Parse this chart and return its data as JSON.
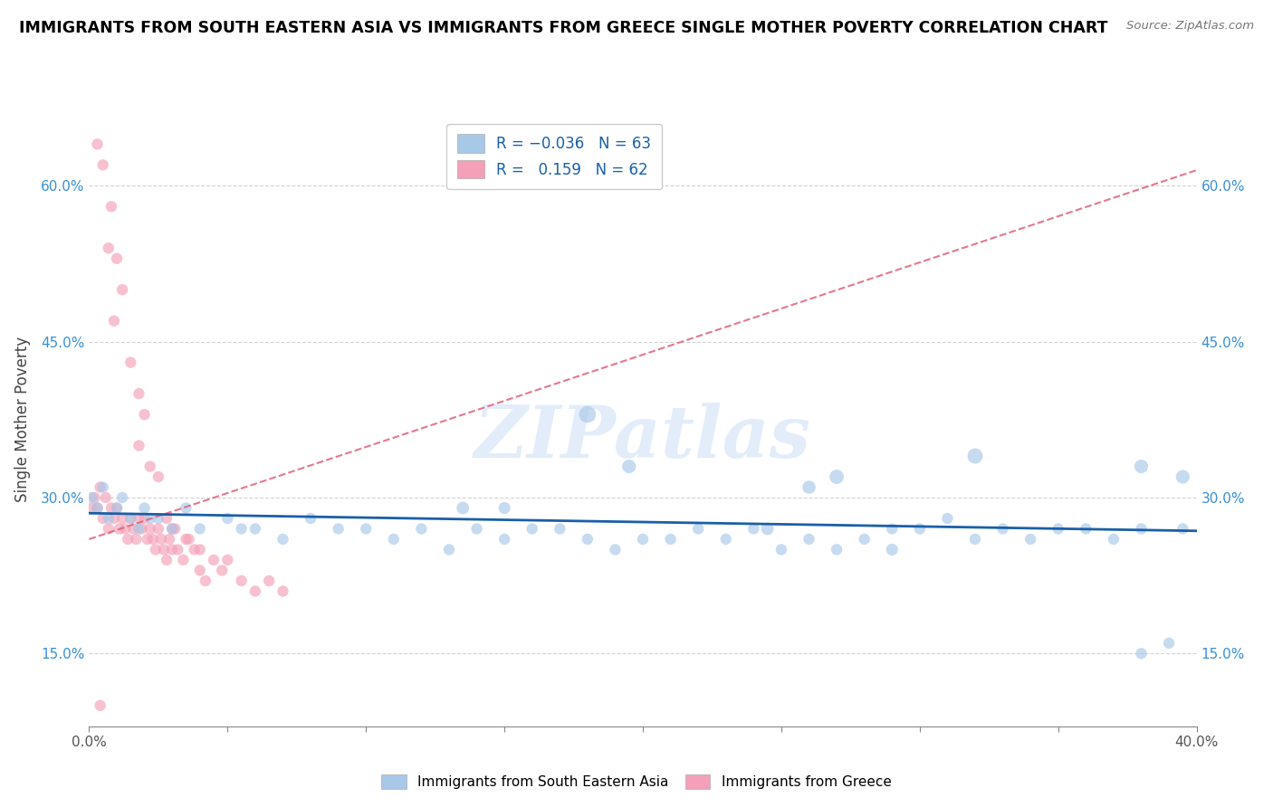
{
  "title": "IMMIGRANTS FROM SOUTH EASTERN ASIA VS IMMIGRANTS FROM GREECE SINGLE MOTHER POVERTY CORRELATION CHART",
  "source": "Source: ZipAtlas.com",
  "ylabel": "Single Mother Poverty",
  "xlim": [
    0.0,
    0.4
  ],
  "ylim": [
    0.08,
    0.67
  ],
  "x_ticks": [
    0.0,
    0.05,
    0.1,
    0.15,
    0.2,
    0.25,
    0.3,
    0.35,
    0.4
  ],
  "x_tick_labels_show": [
    "0.0%",
    "",
    "",
    "",
    "",
    "",
    "",
    "",
    "40.0%"
  ],
  "y_ticks": [
    0.15,
    0.3,
    0.45,
    0.6
  ],
  "y_tick_labels": [
    "15.0%",
    "30.0%",
    "45.0%",
    "60.0%"
  ],
  "blue_color": "#a8c8e8",
  "pink_color": "#f4a0b8",
  "blue_line_color": "#1a5fa8",
  "pink_line_color": "#e0607a",
  "watermark": "ZIPatlas",
  "blue_x": [
    0.001,
    0.003,
    0.005,
    0.007,
    0.01,
    0.012,
    0.015,
    0.018,
    0.02,
    0.022,
    0.025,
    0.03,
    0.035,
    0.04,
    0.05,
    0.055,
    0.06,
    0.07,
    0.08,
    0.09,
    0.1,
    0.11,
    0.12,
    0.13,
    0.14,
    0.15,
    0.16,
    0.17,
    0.18,
    0.19,
    0.2,
    0.21,
    0.22,
    0.23,
    0.24,
    0.25,
    0.26,
    0.27,
    0.28,
    0.29,
    0.3,
    0.31,
    0.32,
    0.33,
    0.34,
    0.35,
    0.36,
    0.37,
    0.38,
    0.39,
    0.395,
    0.18,
    0.27,
    0.32,
    0.245,
    0.195,
    0.135,
    0.26,
    0.395,
    0.38,
    0.29,
    0.15,
    0.38
  ],
  "blue_y": [
    0.3,
    0.29,
    0.31,
    0.28,
    0.29,
    0.3,
    0.28,
    0.27,
    0.29,
    0.28,
    0.28,
    0.27,
    0.29,
    0.27,
    0.28,
    0.27,
    0.27,
    0.26,
    0.28,
    0.27,
    0.27,
    0.26,
    0.27,
    0.25,
    0.27,
    0.26,
    0.27,
    0.27,
    0.26,
    0.25,
    0.26,
    0.26,
    0.27,
    0.26,
    0.27,
    0.25,
    0.26,
    0.25,
    0.26,
    0.27,
    0.27,
    0.28,
    0.26,
    0.27,
    0.26,
    0.27,
    0.27,
    0.26,
    0.15,
    0.16,
    0.27,
    0.38,
    0.32,
    0.34,
    0.27,
    0.33,
    0.29,
    0.31,
    0.32,
    0.33,
    0.25,
    0.29,
    0.27
  ],
  "blue_sizes": [
    80,
    80,
    80,
    80,
    80,
    80,
    80,
    80,
    80,
    80,
    80,
    80,
    80,
    80,
    80,
    80,
    80,
    80,
    80,
    80,
    80,
    80,
    80,
    80,
    80,
    80,
    80,
    80,
    80,
    80,
    80,
    80,
    80,
    80,
    80,
    80,
    80,
    80,
    80,
    80,
    80,
    80,
    80,
    80,
    80,
    80,
    80,
    80,
    80,
    80,
    80,
    180,
    130,
    150,
    100,
    120,
    100,
    110,
    120,
    120,
    90,
    90,
    80
  ],
  "pink_x": [
    0.001,
    0.002,
    0.003,
    0.004,
    0.005,
    0.006,
    0.007,
    0.008,
    0.009,
    0.01,
    0.011,
    0.012,
    0.013,
    0.014,
    0.015,
    0.016,
    0.017,
    0.018,
    0.019,
    0.02,
    0.021,
    0.022,
    0.023,
    0.024,
    0.025,
    0.026,
    0.027,
    0.028,
    0.029,
    0.03,
    0.031,
    0.032,
    0.034,
    0.036,
    0.038,
    0.04,
    0.042,
    0.045,
    0.048,
    0.05,
    0.055,
    0.06,
    0.065,
    0.07,
    0.028,
    0.03,
    0.035,
    0.04,
    0.018,
    0.022,
    0.009,
    0.012,
    0.015,
    0.018,
    0.007,
    0.005,
    0.003,
    0.008,
    0.01,
    0.02,
    0.025,
    0.004
  ],
  "pink_y": [
    0.29,
    0.3,
    0.29,
    0.31,
    0.28,
    0.3,
    0.27,
    0.29,
    0.28,
    0.29,
    0.27,
    0.28,
    0.27,
    0.26,
    0.28,
    0.27,
    0.26,
    0.28,
    0.27,
    0.28,
    0.26,
    0.27,
    0.26,
    0.25,
    0.27,
    0.26,
    0.25,
    0.24,
    0.26,
    0.25,
    0.27,
    0.25,
    0.24,
    0.26,
    0.25,
    0.23,
    0.22,
    0.24,
    0.23,
    0.24,
    0.22,
    0.21,
    0.22,
    0.21,
    0.28,
    0.27,
    0.26,
    0.25,
    0.35,
    0.33,
    0.47,
    0.5,
    0.43,
    0.4,
    0.54,
    0.62,
    0.64,
    0.58,
    0.53,
    0.38,
    0.32,
    0.1
  ],
  "pink_sizes": [
    80,
    80,
    80,
    80,
    80,
    80,
    80,
    80,
    80,
    80,
    80,
    80,
    80,
    80,
    80,
    80,
    80,
    80,
    80,
    80,
    80,
    80,
    80,
    80,
    80,
    80,
    80,
    80,
    80,
    80,
    80,
    80,
    80,
    80,
    80,
    80,
    80,
    80,
    80,
    80,
    80,
    80,
    80,
    80,
    80,
    80,
    80,
    80,
    80,
    80,
    80,
    80,
    80,
    80,
    80,
    80,
    80,
    80,
    80,
    80,
    80,
    80
  ],
  "blue_trend_x": [
    0.0,
    0.4
  ],
  "blue_trend_y": [
    0.285,
    0.268
  ],
  "pink_trend_x": [
    0.0,
    0.4
  ],
  "pink_trend_y": [
    0.26,
    0.615
  ]
}
